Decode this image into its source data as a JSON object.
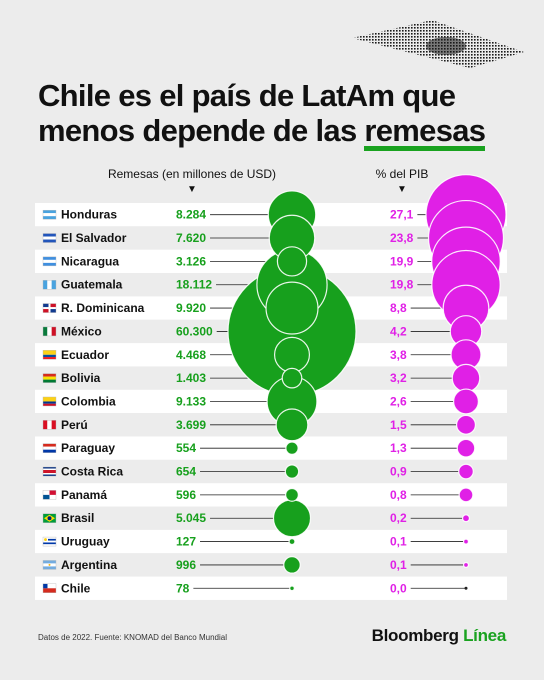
{
  "title": {
    "line1": "Chile es el país de LatAm que",
    "line2_prefix": "menos depende de las ",
    "line2_highlight": "remesas"
  },
  "columns": {
    "remittances_header": "Remesas (en millones de USD)",
    "gdp_header": "% del PIB",
    "sort_marker": "▼"
  },
  "colors": {
    "remittances": "#17a01d",
    "gdp": "#e020e6",
    "highlight_underline": "#19a21f",
    "row_even": "#ffffff",
    "row_odd": "#ececec"
  },
  "chart_data": {
    "type": "table",
    "categories": [
      "Honduras",
      "El Salvador",
      "Nicaragua",
      "Guatemala",
      "R. Dominicana",
      "México",
      "Ecuador",
      "Bolivia",
      "Colombia",
      "Perú",
      "Paraguay",
      "Costa Rica",
      "Panamá",
      "Brasil",
      "Uruguay",
      "Argentina",
      "Chile"
    ],
    "flag_icons": [
      "honduras-flag-icon",
      "el-salvador-flag-icon",
      "nicaragua-flag-icon",
      "guatemala-flag-icon",
      "dominican-republic-flag-icon",
      "mexico-flag-icon",
      "ecuador-flag-icon",
      "bolivia-flag-icon",
      "colombia-flag-icon",
      "peru-flag-icon",
      "paraguay-flag-icon",
      "costa-rica-flag-icon",
      "panama-flag-icon",
      "brazil-flag-icon",
      "uruguay-flag-icon",
      "argentina-flag-icon",
      "chile-flag-icon"
    ],
    "series": [
      {
        "name": "Remesas (en millones de USD)",
        "values": [
          8284,
          7620,
          3126,
          18112,
          9920,
          60300,
          4468,
          1403,
          9133,
          3699,
          554,
          654,
          596,
          5045,
          127,
          996,
          78
        ],
        "labels": [
          "8.284",
          "7.620",
          "3.126",
          "18.112",
          "9.920",
          "60.300",
          "4.468",
          "1.403",
          "9.133",
          "3.699",
          "554",
          "654",
          "596",
          "5.045",
          "127",
          "996",
          "78"
        ]
      },
      {
        "name": "% del PIB",
        "values": [
          27.1,
          23.8,
          19.9,
          19.8,
          8.8,
          4.2,
          3.8,
          3.2,
          2.6,
          1.5,
          1.3,
          0.9,
          0.8,
          0.2,
          0.1,
          0.1,
          0.0
        ],
        "labels": [
          "27,1",
          "23,8",
          "19,9",
          "19,8",
          "8,8",
          "4,2",
          "3,8",
          "3,2",
          "2,6",
          "1,5",
          "1,3",
          "0,9",
          "0,8",
          "0,2",
          "0,1",
          "0,1",
          "0,0"
        ]
      }
    ]
  },
  "footer": {
    "source": "Datos de 2022. Fuente: KNOMAD del Banco Mundial",
    "brand_main": "Bloomberg ",
    "brand_accent": "Línea"
  }
}
